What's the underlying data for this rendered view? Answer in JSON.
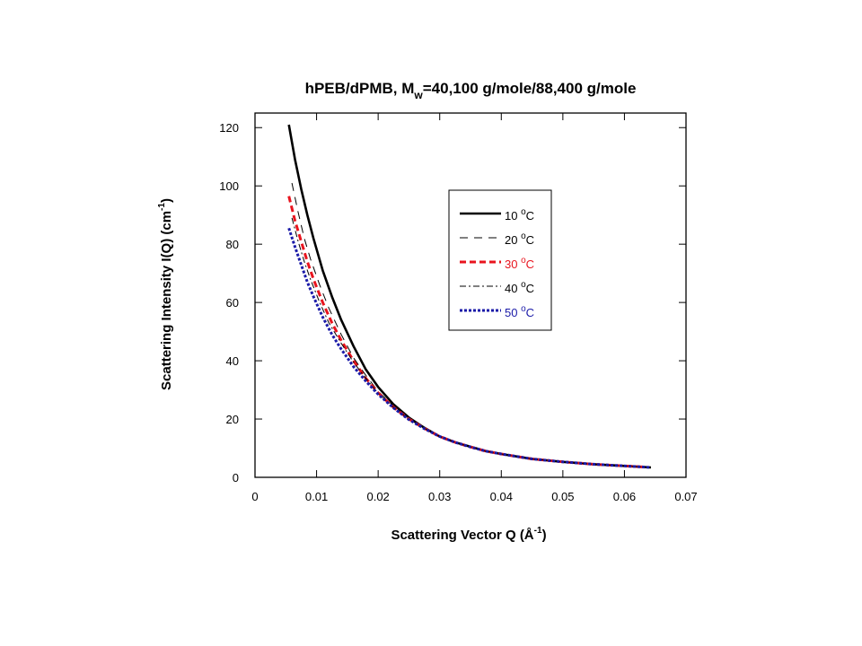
{
  "chart_data": {
    "type": "line",
    "title": {
      "main": "hPEB/dPMB, M",
      "sub": "w",
      "rest": "=40,100 g/mole/88,400 g/mole"
    },
    "xlabel": {
      "main": "Scattering Vector Q (Å",
      "sup": "-1",
      "end": ")"
    },
    "ylabel": {
      "main": "Scattering Intensity I(Q) (cm",
      "sup": "-1",
      "end": ")"
    },
    "xlim": [
      0,
      0.07
    ],
    "ylim": [
      0,
      125
    ],
    "xticks": [
      0,
      0.01,
      0.02,
      0.03,
      0.04,
      0.05,
      0.06,
      0.07
    ],
    "xtick_labels": [
      "0",
      "0.01",
      "0.02",
      "0.03",
      "0.04",
      "0.05",
      "0.06",
      "0.07"
    ],
    "yticks": [
      0,
      20,
      40,
      60,
      80,
      100,
      120
    ],
    "ytick_labels": [
      "0",
      "20",
      "40",
      "60",
      "80",
      "100",
      "120"
    ],
    "grid": false,
    "legend_position": "upper-right",
    "series": [
      {
        "name": "10 °C",
        "num": "10",
        "unit": "C",
        "sup": "o",
        "color": "#000000",
        "dash": "solid",
        "width": 2.6,
        "label_color": "#000000",
        "x": [
          0.0055,
          0.0065,
          0.0075,
          0.0085,
          0.0095,
          0.011,
          0.0125,
          0.014,
          0.016,
          0.018,
          0.02,
          0.0225,
          0.025,
          0.0275,
          0.03,
          0.0325,
          0.035,
          0.0375,
          0.04,
          0.045,
          0.05,
          0.055,
          0.06,
          0.0643
        ],
        "y": [
          121,
          109,
          99,
          90,
          82,
          71,
          62,
          54,
          45,
          37,
          31,
          25,
          20.5,
          17,
          14,
          12,
          10.5,
          9,
          8,
          6.3,
          5.3,
          4.5,
          3.9,
          3.4
        ]
      },
      {
        "name": "20 °C",
        "num": "20",
        "unit": "C",
        "sup": "o",
        "color": "#000000",
        "dash": "9 7",
        "width": 1,
        "label_color": "#000000",
        "x": [
          0.006,
          0.007,
          0.008,
          0.009,
          0.0105,
          0.012,
          0.014,
          0.016,
          0.018,
          0.02,
          0.0225,
          0.025,
          0.0275,
          0.03,
          0.0325,
          0.035,
          0.0375,
          0.04,
          0.045,
          0.05,
          0.055,
          0.06,
          0.0643
        ],
        "y": [
          101,
          91,
          82,
          75,
          66,
          58,
          49,
          41,
          35,
          29.5,
          24.5,
          20.2,
          16.8,
          14,
          12,
          10.4,
          9,
          8,
          6.3,
          5.3,
          4.5,
          3.9,
          3.4
        ]
      },
      {
        "name": "30 °C",
        "num": "30",
        "unit": "C",
        "sup": "o",
        "color": "#e8141e",
        "dash": "7 4",
        "width": 3,
        "label_color": "#e8141e",
        "x": [
          0.0055,
          0.0065,
          0.0075,
          0.0085,
          0.0095,
          0.011,
          0.0125,
          0.014,
          0.016,
          0.018,
          0.02,
          0.0225,
          0.025,
          0.0275,
          0.03,
          0.0325,
          0.035,
          0.0375,
          0.04,
          0.045,
          0.05,
          0.055,
          0.06,
          0.0635
        ],
        "y": [
          96.5,
          88,
          81,
          74,
          68,
          60,
          53,
          47,
          40,
          34,
          29,
          24,
          20,
          16.8,
          14,
          12,
          10.4,
          9,
          8,
          6.3,
          5.3,
          4.5,
          3.9,
          3.5
        ]
      },
      {
        "name": "40 °C",
        "num": "40",
        "unit": "C",
        "sup": "o",
        "color": "#000000",
        "dash": "7 3 2 3",
        "width": 1,
        "label_color": "#000000",
        "x": [
          0.006,
          0.007,
          0.008,
          0.009,
          0.0105,
          0.012,
          0.014,
          0.016,
          0.018,
          0.02,
          0.0225,
          0.025,
          0.0275,
          0.03,
          0.0325,
          0.035,
          0.0375,
          0.04,
          0.045,
          0.05,
          0.055,
          0.06,
          0.0643
        ],
        "y": [
          89,
          81,
          74,
          68,
          60,
          53,
          46,
          39.5,
          34,
          28.8,
          24,
          20,
          16.8,
          14,
          12,
          10.4,
          9,
          8,
          6.3,
          5.3,
          4.5,
          3.9,
          3.4
        ]
      },
      {
        "name": "50 °C",
        "num": "50",
        "unit": "C",
        "sup": "o",
        "color": "#1a1aa8",
        "dash": "3 2",
        "width": 3,
        "label_color": "#1a1aa8",
        "x": [
          0.0055,
          0.0065,
          0.0075,
          0.0085,
          0.0095,
          0.011,
          0.0125,
          0.014,
          0.016,
          0.018,
          0.02,
          0.0225,
          0.025,
          0.0275,
          0.03,
          0.0325,
          0.035,
          0.0375,
          0.04,
          0.045,
          0.05,
          0.055,
          0.06,
          0.0643
        ],
        "y": [
          85.5,
          79,
          73,
          67,
          62,
          55,
          49,
          44,
          38,
          33,
          28.5,
          23.8,
          19.8,
          16.7,
          14,
          12,
          10.4,
          9,
          8,
          6.3,
          5.3,
          4.5,
          3.9,
          3.4
        ]
      }
    ]
  }
}
